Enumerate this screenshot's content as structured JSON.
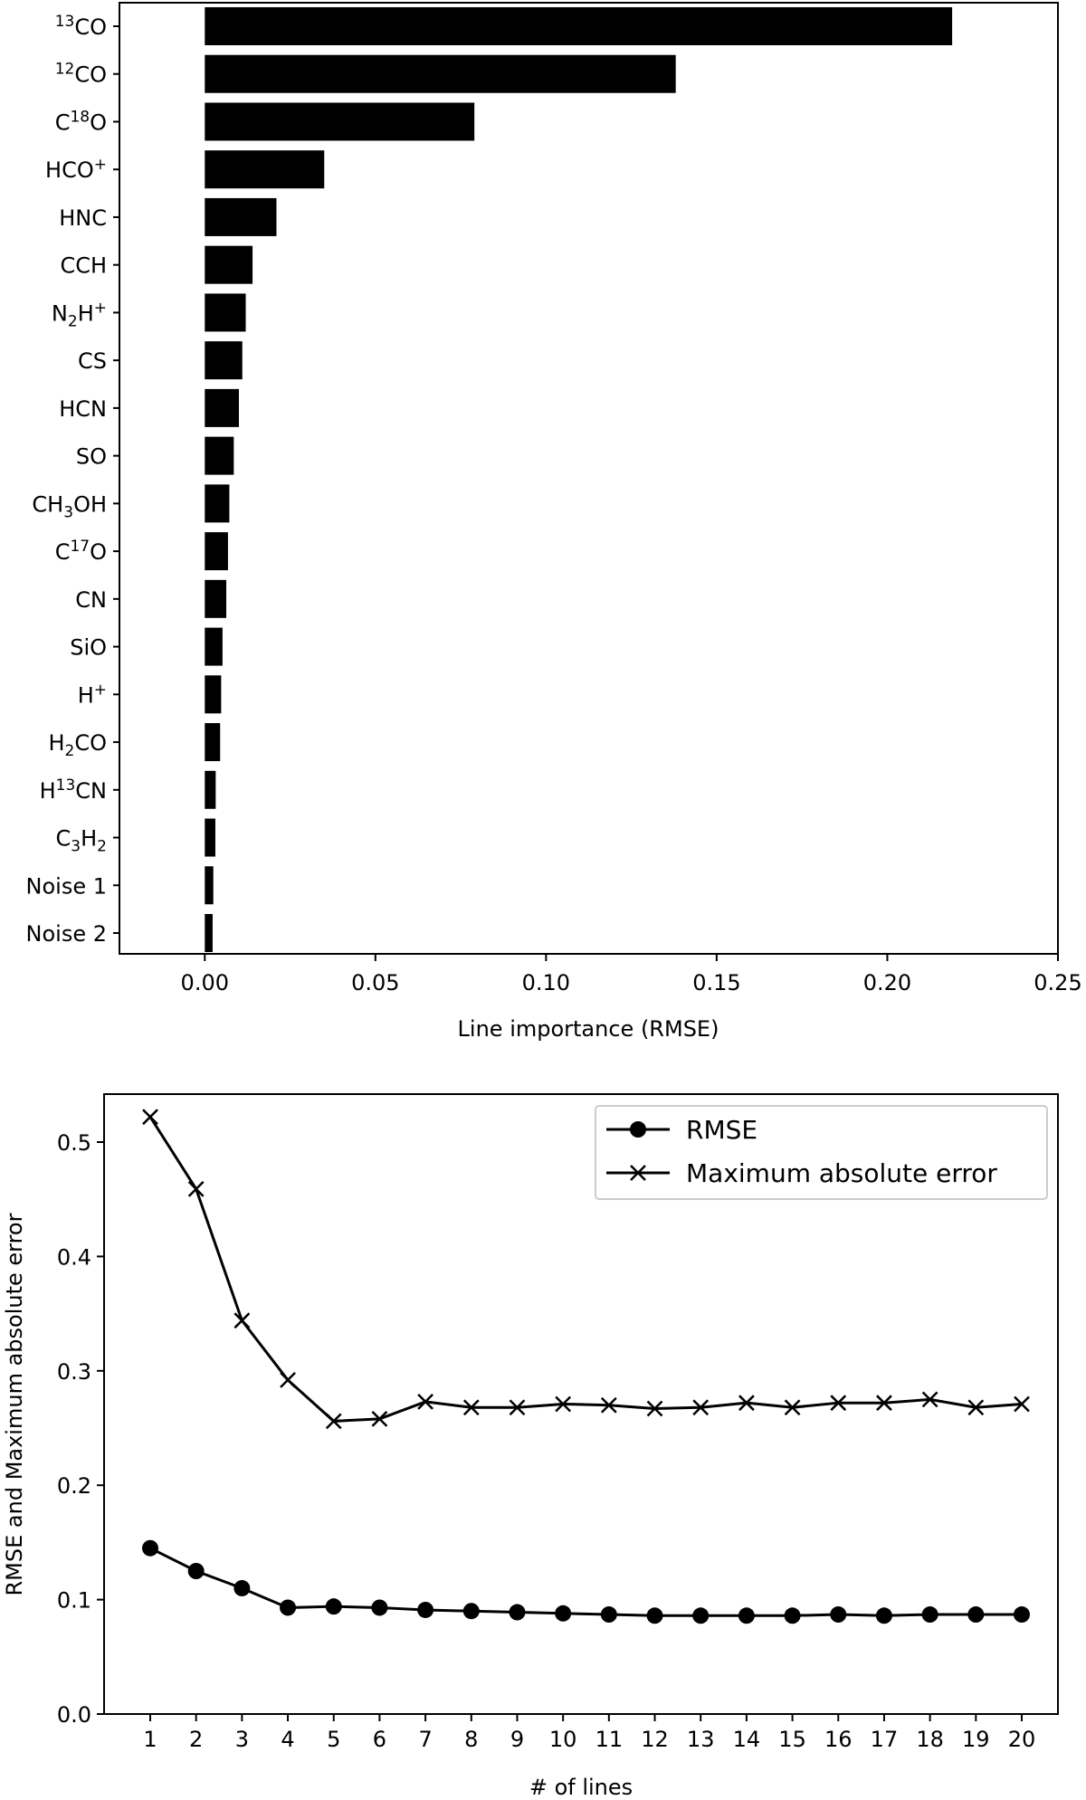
{
  "chart_data": [
    {
      "type": "bar",
      "orientation": "horizontal",
      "title": "",
      "xlabel": "Line importance (RMSE)",
      "ylabel": "",
      "xlim": [
        -0.025,
        0.25
      ],
      "xticks": [
        0.0,
        0.05,
        0.1,
        0.15,
        0.2,
        0.25
      ],
      "xtick_labels": [
        "0.00",
        "0.05",
        "0.10",
        "0.15",
        "0.20",
        "0.25"
      ],
      "grid": false,
      "categories": [
        {
          "base": "",
          "sup": "13",
          "tail": "CO"
        },
        {
          "base": "",
          "sup": "12",
          "tail": "CO"
        },
        {
          "base": "C",
          "sup": "18",
          "tail": "O"
        },
        {
          "base": "HCO",
          "sup": "+",
          "tail": ""
        },
        {
          "base": "HNC",
          "sup": "",
          "tail": ""
        },
        {
          "base": "CCH",
          "sup": "",
          "tail": ""
        },
        {
          "base": "N",
          "sub": "2",
          "mid": "H",
          "sup": "+",
          "tail": ""
        },
        {
          "base": "CS",
          "sup": "",
          "tail": ""
        },
        {
          "base": "HCN",
          "sup": "",
          "tail": ""
        },
        {
          "base": "SO",
          "sup": "",
          "tail": ""
        },
        {
          "base": "CH",
          "sub": "3",
          "mid": "OH",
          "sup": "",
          "tail": ""
        },
        {
          "base": "C",
          "sup": "17",
          "tail": "O"
        },
        {
          "base": "CN",
          "sup": "",
          "tail": ""
        },
        {
          "base": "SiO",
          "sup": "",
          "tail": ""
        },
        {
          "base": "H",
          "sup": "+",
          "tail": ""
        },
        {
          "base": "H",
          "sub": "2",
          "mid": "CO",
          "sup": "",
          "tail": ""
        },
        {
          "base": "H",
          "sup": "13",
          "tail": "CN"
        },
        {
          "base": "C",
          "sub": "3",
          "mid": "H",
          "sub2": "2",
          "sup": "",
          "tail": ""
        },
        {
          "base": "Noise 1",
          "sup": "",
          "tail": ""
        },
        {
          "base": "Noise 2",
          "sup": "",
          "tail": ""
        }
      ],
      "values": [
        0.219,
        0.138,
        0.079,
        0.035,
        0.021,
        0.014,
        0.012,
        0.011,
        0.01,
        0.0085,
        0.0072,
        0.0068,
        0.0063,
        0.0052,
        0.0048,
        0.0045,
        0.0032,
        0.0031,
        0.0025,
        0.0023
      ],
      "bar_color": "#000000"
    },
    {
      "type": "line",
      "title": "",
      "xlabel": "# of lines",
      "ylabel": "RMSE and Maximum absolute error",
      "ylim": [
        0.0,
        0.54
      ],
      "yticks": [
        0.0,
        0.1,
        0.2,
        0.3,
        0.4,
        0.5
      ],
      "ytick_labels": [
        "0.0",
        "0.1",
        "0.2",
        "0.3",
        "0.4",
        "0.5"
      ],
      "x": [
        1,
        2,
        3,
        4,
        5,
        6,
        7,
        8,
        9,
        10,
        11,
        12,
        13,
        14,
        15,
        16,
        17,
        18,
        19,
        20
      ],
      "xtick_labels": [
        "1",
        "2",
        "3",
        "4",
        "5",
        "6",
        "7",
        "8",
        "9",
        "10",
        "11",
        "12",
        "13",
        "14",
        "15",
        "16",
        "17",
        "18",
        "19",
        "20"
      ],
      "legend_position": "top-right",
      "grid": false,
      "series": [
        {
          "name": "RMSE",
          "marker": "circle",
          "color": "#000000",
          "values": [
            0.145,
            0.125,
            0.11,
            0.093,
            0.094,
            0.093,
            0.091,
            0.09,
            0.089,
            0.088,
            0.087,
            0.086,
            0.086,
            0.086,
            0.086,
            0.087,
            0.086,
            0.087,
            0.087,
            0.087
          ]
        },
        {
          "name": "Maximum absolute error",
          "marker": "x",
          "color": "#000000",
          "values": [
            0.522,
            0.459,
            0.344,
            0.292,
            0.256,
            0.258,
            0.273,
            0.268,
            0.268,
            0.271,
            0.27,
            0.267,
            0.268,
            0.272,
            0.268,
            0.272,
            0.272,
            0.275,
            0.268,
            0.271
          ]
        }
      ]
    }
  ]
}
